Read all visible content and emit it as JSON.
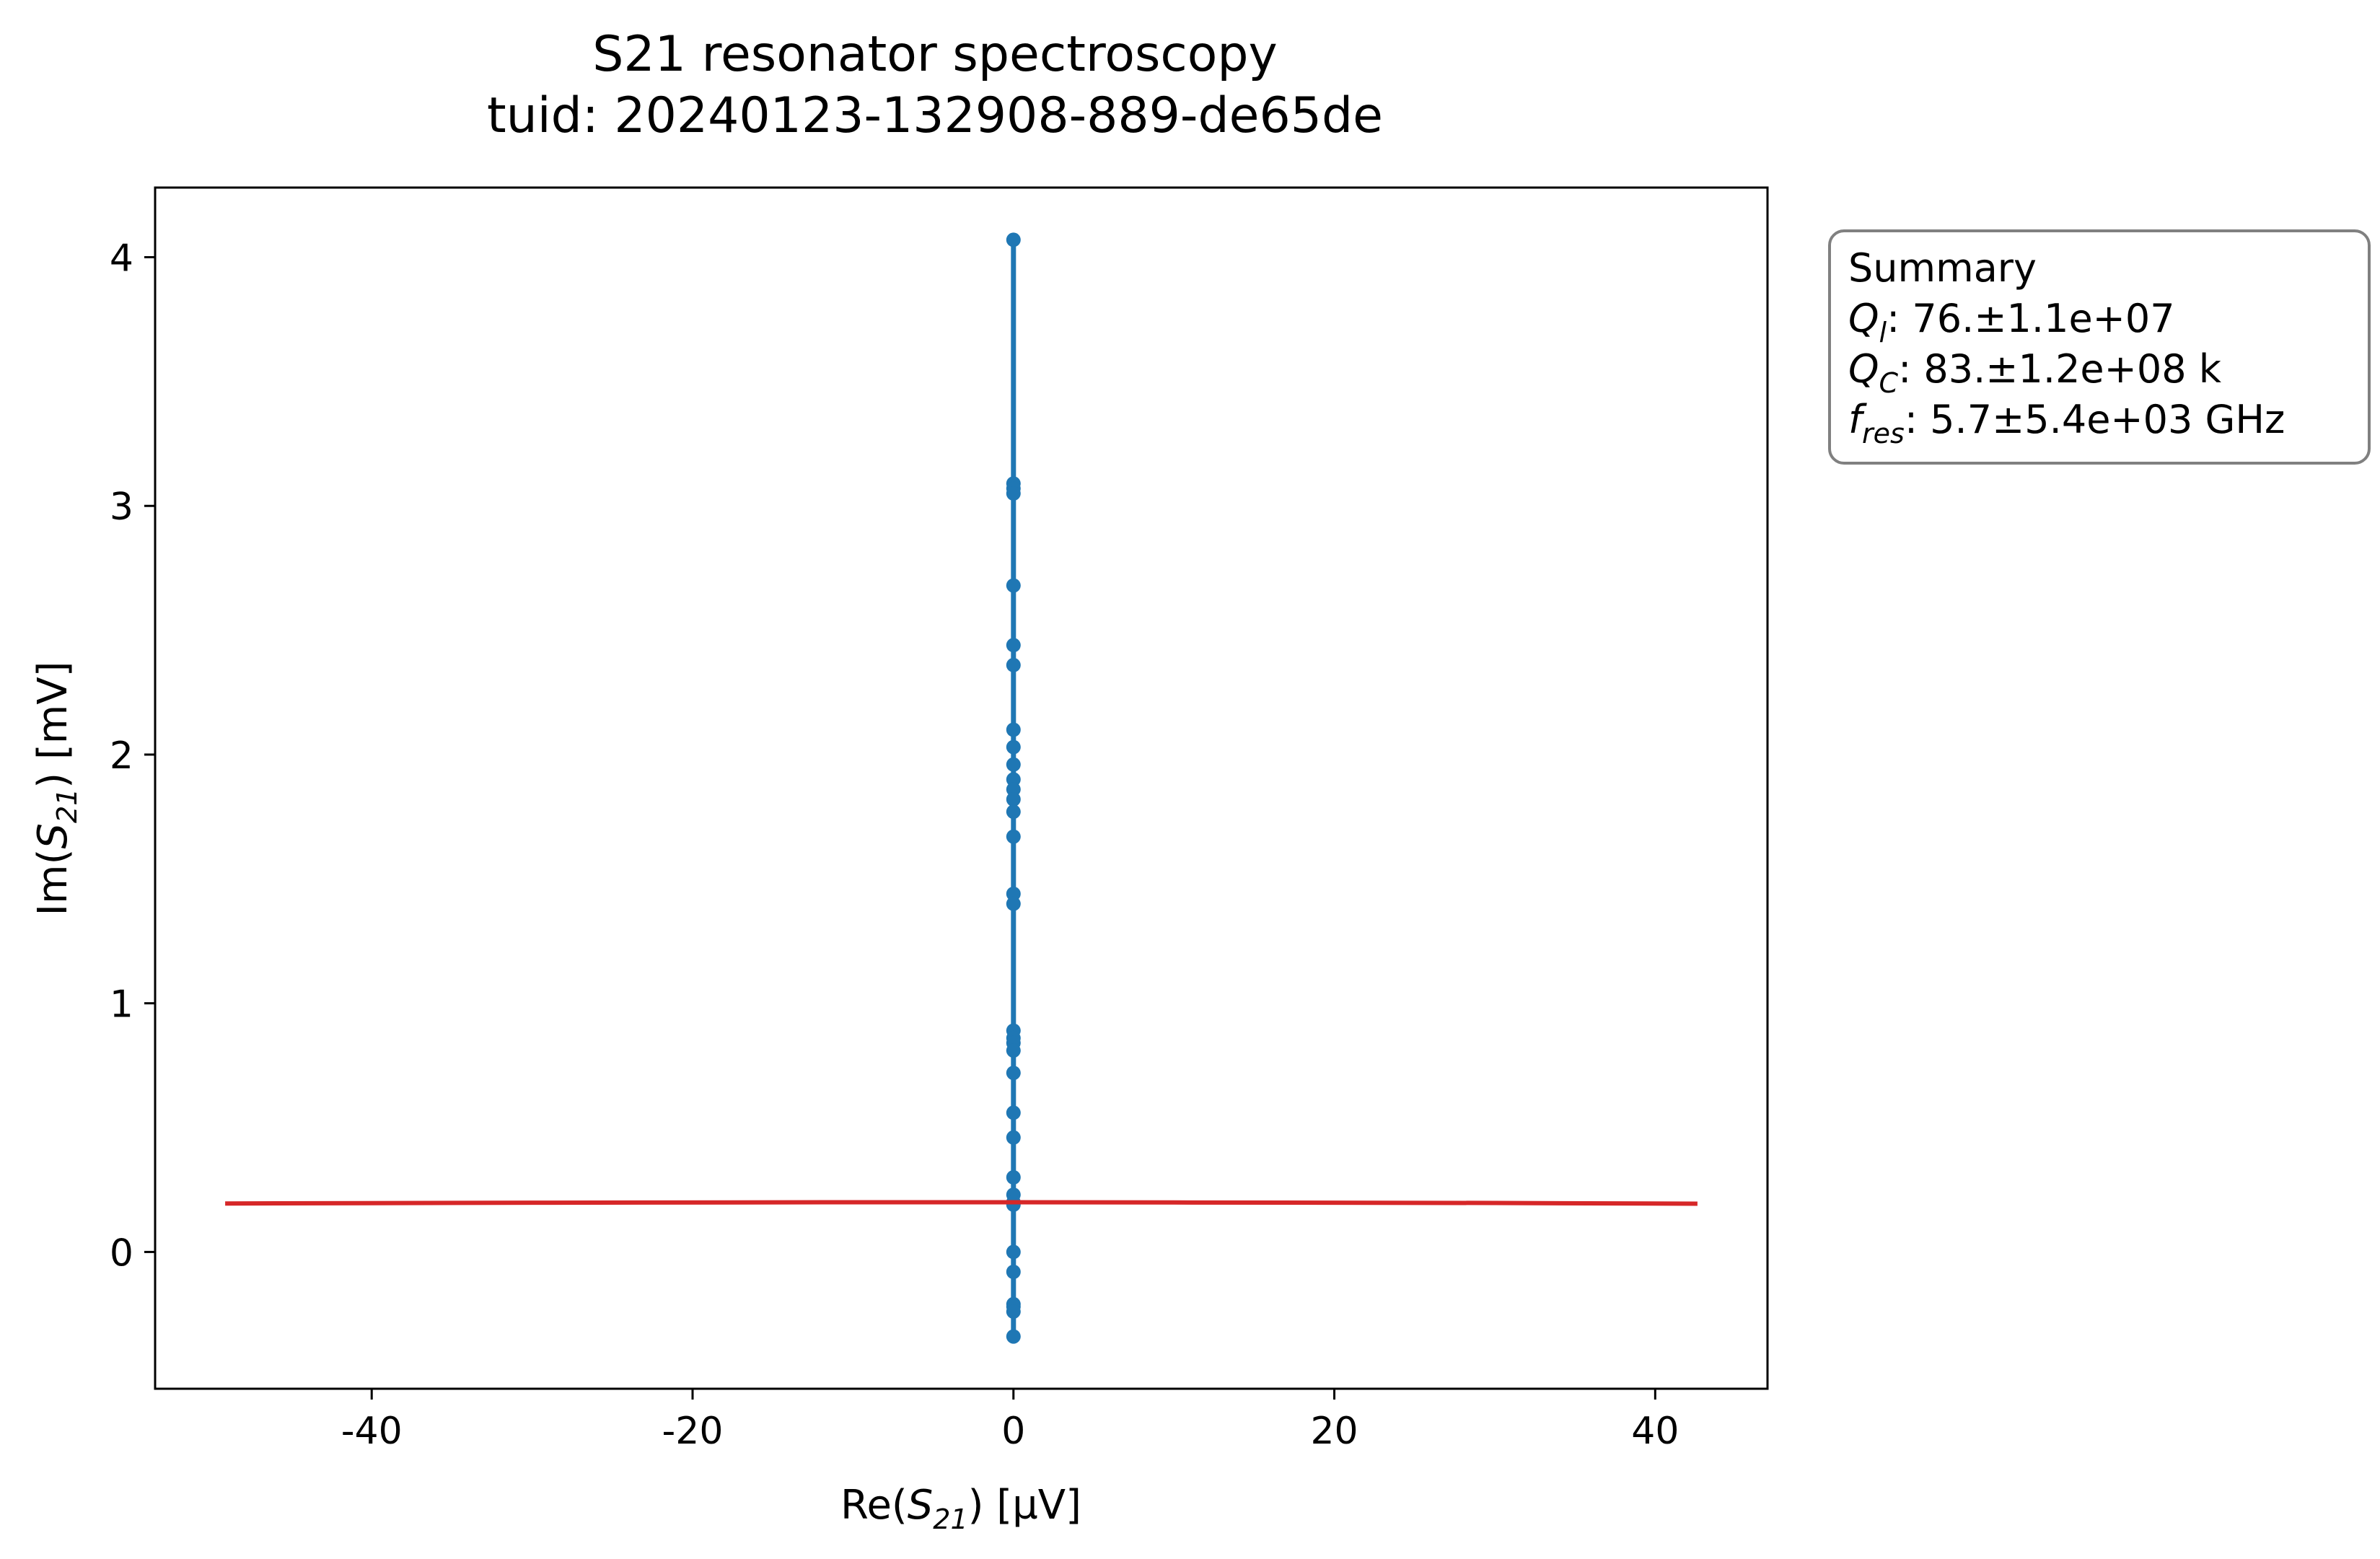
{
  "chart_data": {
    "type": "scatter",
    "title": "S21 resonator spectroscopy",
    "subtitle": "tuid: 20240123-132908-889-de65de",
    "xlabel": {
      "pre": "Re(",
      "sym": "S",
      "sub": "21",
      "post": ") [µV]"
    },
    "ylabel": {
      "pre": "Im(",
      "sym": "S",
      "sub": "21",
      "post": ") [mV]"
    },
    "xlim": [
      -53.5,
      47
    ],
    "ylim": [
      -0.55,
      4.28
    ],
    "xticks": [
      -40,
      -20,
      0,
      20,
      40
    ],
    "xtick_labels": [
      "-40",
      "-20",
      "0",
      "20",
      "40"
    ],
    "yticks": [
      0,
      1,
      2,
      3,
      4
    ],
    "ytick_labels": [
      "0",
      "1",
      "2",
      "3",
      "4"
    ],
    "grid": false,
    "series": [
      {
        "kind": "line-markers",
        "color": "#1f77b4",
        "x": [
          0,
          0,
          0,
          0,
          0,
          0,
          0,
          0,
          0,
          0,
          0,
          0,
          0,
          0,
          0,
          0,
          0,
          0,
          0,
          0,
          0,
          0,
          0,
          0,
          0,
          0,
          0,
          0,
          0,
          0,
          0,
          0,
          0,
          0
        ],
        "y": [
          4.07,
          3.09,
          3.07,
          3.05,
          2.68,
          2.44,
          2.36,
          2.1,
          2.03,
          1.96,
          1.9,
          1.86,
          1.82,
          1.77,
          1.67,
          1.44,
          1.4,
          0.89,
          0.86,
          0.84,
          0.81,
          0.72,
          0.56,
          0.46,
          0.3,
          0.23,
          0.19,
          0.0,
          -0.08,
          -0.21,
          -0.22,
          -0.24,
          -0.34,
          0.2
        ]
      },
      {
        "kind": "line",
        "color": "#d62728",
        "x": [
          -49,
          -30,
          -10,
          0,
          10,
          30,
          42.5
        ],
        "y": [
          0.195,
          0.198,
          0.2,
          0.2,
          0.199,
          0.197,
          0.194
        ]
      }
    ],
    "summary": {
      "heading": "Summary",
      "rows": [
        {
          "sym": "Q",
          "sub": "l",
          "text": ": 76.±1.1e+07"
        },
        {
          "sym": "Q",
          "sub": "C",
          "text": ": 83.±1.2e+08 k"
        },
        {
          "sym": "f",
          "sub": "res",
          "text": ": 5.7±5.4e+03 GHz"
        }
      ]
    }
  }
}
